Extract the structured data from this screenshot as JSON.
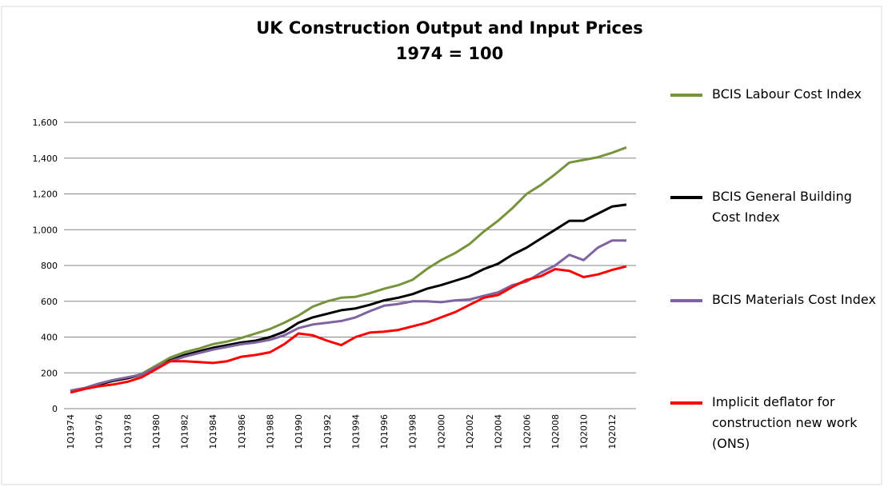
{
  "chart_data": {
    "type": "line",
    "title": "UK Construction Output and Input Prices",
    "subtitle": "1974 = 100",
    "categories": [
      "1Q1974",
      null,
      "1Q1976",
      null,
      "1Q1978",
      null,
      "1Q1980",
      null,
      "1Q1982",
      null,
      "1Q1984",
      null,
      "1Q1986",
      null,
      "1Q1988",
      null,
      "1Q1990",
      null,
      "1Q1992",
      null,
      "1Q1994",
      null,
      "1Q1996",
      null,
      "1Q1998",
      null,
      "1Q2000",
      null,
      "1Q2002",
      null,
      "1Q2004",
      null,
      "1Q2006",
      null,
      "1Q2008",
      null,
      "1Q2010",
      null,
      "1Q2012",
      null
    ],
    "series": [
      {
        "name": "BCIS Labour Cost Index",
        "color": "#77933c",
        "values": [
          100,
          115,
          140,
          155,
          170,
          195,
          240,
          285,
          315,
          335,
          360,
          375,
          395,
          420,
          445,
          480,
          520,
          570,
          600,
          620,
          625,
          645,
          670,
          690,
          720,
          780,
          830,
          870,
          920,
          990,
          1050,
          1120,
          1200,
          1250,
          1310,
          1375,
          1390,
          1405,
          1430,
          1460
        ]
      },
      {
        "name": "BCIS General Building Cost Index",
        "color": "#000000",
        "values": [
          100,
          115,
          135,
          155,
          170,
          190,
          225,
          270,
          300,
          320,
          340,
          355,
          370,
          380,
          400,
          430,
          480,
          510,
          530,
          550,
          560,
          580,
          605,
          620,
          640,
          670,
          690,
          715,
          740,
          780,
          810,
          860,
          900,
          950,
          1000,
          1050,
          1050,
          1090,
          1130,
          1140
        ]
      },
      {
        "name": "BCIS Materials Cost Index",
        "color": "#8064a2",
        "values": [
          100,
          115,
          140,
          160,
          175,
          190,
          230,
          265,
          290,
          310,
          330,
          345,
          360,
          370,
          385,
          410,
          450,
          470,
          480,
          490,
          510,
          545,
          575,
          585,
          600,
          600,
          595,
          605,
          610,
          630,
          650,
          690,
          710,
          760,
          800,
          860,
          830,
          900,
          940,
          940
        ]
      },
      {
        "name": "Implicit deflator for construction new work (ONS)",
        "color": "#ff0000",
        "values": [
          90,
          110,
          125,
          135,
          150,
          175,
          220,
          265,
          265,
          260,
          255,
          265,
          290,
          300,
          315,
          360,
          420,
          410,
          380,
          355,
          400,
          425,
          430,
          440,
          460,
          480,
          510,
          540,
          580,
          620,
          635,
          680,
          720,
          740,
          780,
          770,
          735,
          750,
          775,
          795
        ]
      }
    ],
    "ylim": [
      0,
      1600
    ],
    "yticks": [
      0,
      200,
      400,
      600,
      800,
      {
        "value": 1000,
        "label": "1,000"
      },
      {
        "value": 1200,
        "label": "1,200"
      },
      {
        "value": 1400,
        "label": "1,400"
      },
      {
        "value": 1600,
        "label": "1,600"
      }
    ],
    "grid": true,
    "legend": "right"
  }
}
